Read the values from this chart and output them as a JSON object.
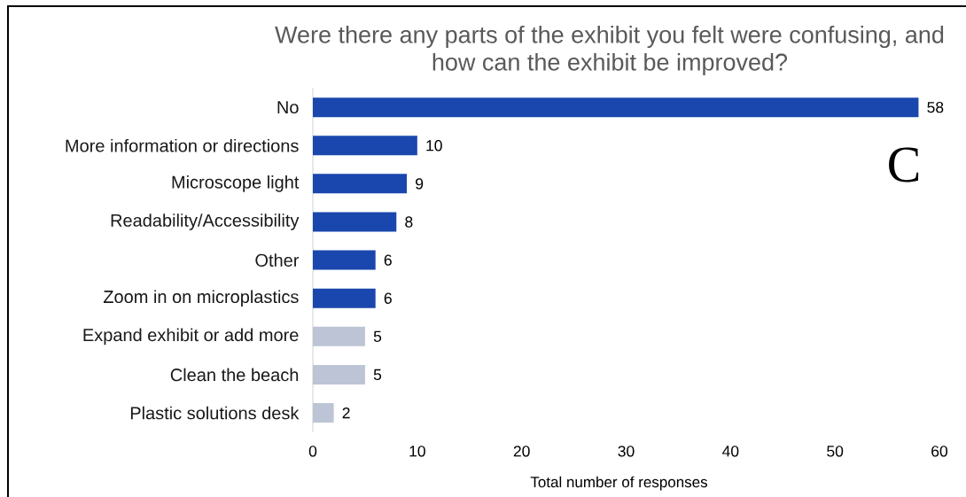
{
  "chart_data": {
    "type": "bar",
    "orientation": "horizontal",
    "title": "Were there any parts of the exhibit you felt were confusing, and how can the exhibit be improved?",
    "xlabel": "Total number of responses",
    "categories": [
      "No",
      "More information or directions",
      "Microscope light",
      "Readability/Accessibility",
      "Other",
      "Zoom in on microplastics",
      "Expand exhibit or add more",
      "Clean the beach",
      "Plastic solutions desk"
    ],
    "values": [
      58,
      10,
      9,
      8,
      6,
      6,
      5,
      5,
      2
    ],
    "colors": [
      "#1a47ad",
      "#1a47ad",
      "#1a47ad",
      "#1a47ad",
      "#1a47ad",
      "#1a47ad",
      "#bcc4d5",
      "#bcc4d5",
      "#bcc4d5"
    ],
    "xlim": [
      0,
      60
    ],
    "xticks": [
      0,
      10,
      20,
      30,
      40,
      50,
      60
    ],
    "data_labels": true,
    "annotations": [
      "C"
    ]
  }
}
